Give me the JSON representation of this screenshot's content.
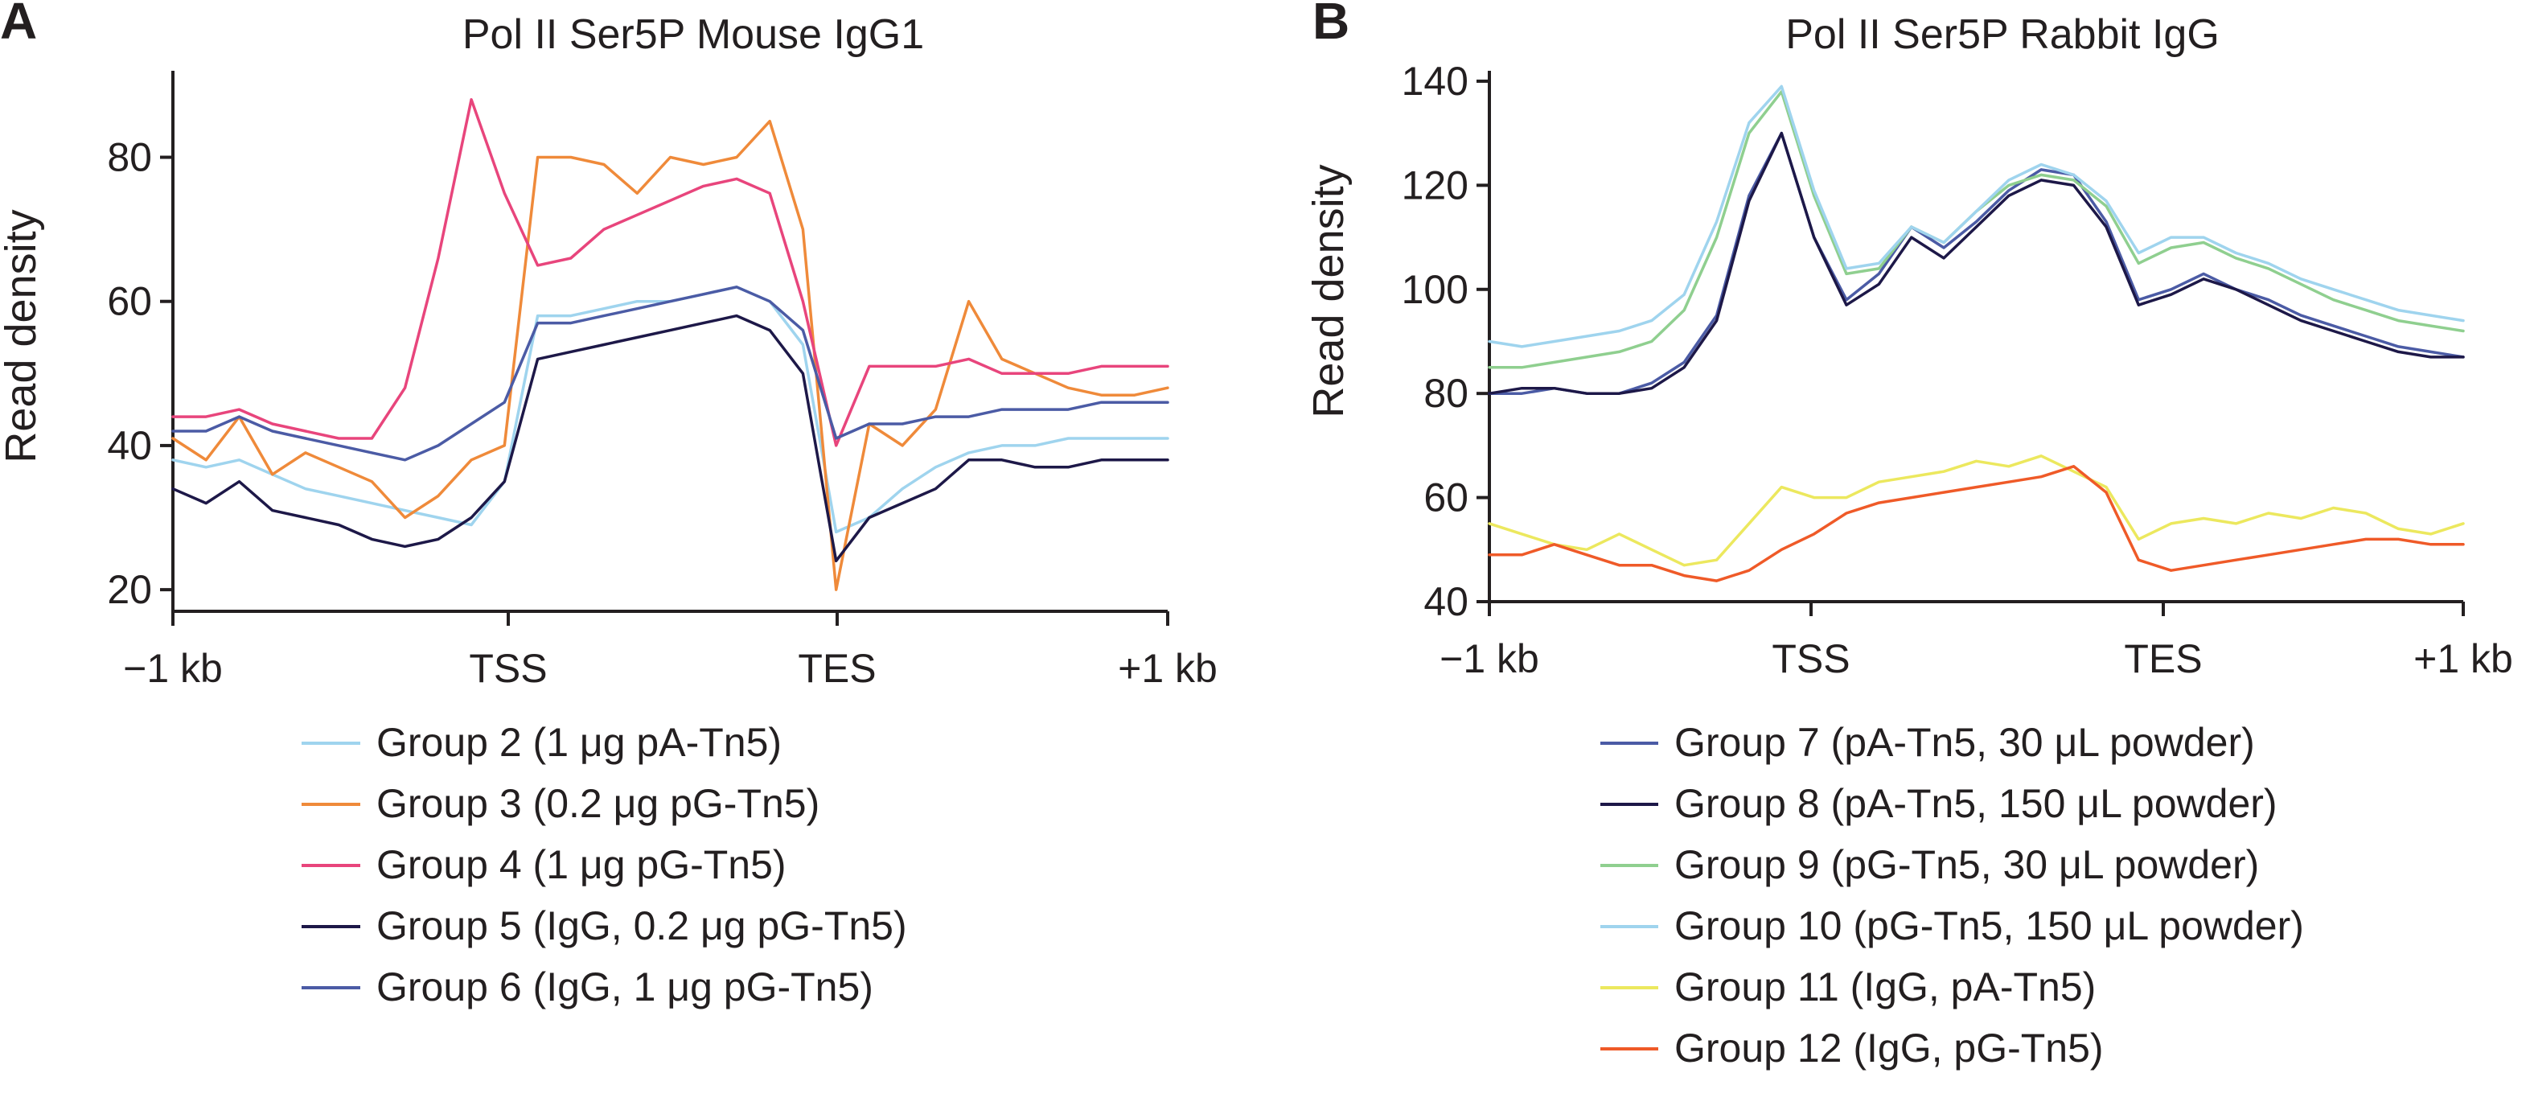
{
  "chart_data": [
    {
      "panel": "A",
      "type": "line",
      "title": "Pol II Ser5P Mouse IgG1",
      "xlabel": "",
      "ylabel": "Read density",
      "x_tick_labels": [
        "−1 kb",
        "TSS",
        "TES",
        "+1 kb"
      ],
      "x": [
        0,
        0.1,
        0.2,
        0.3,
        0.4,
        0.5,
        0.6,
        0.7,
        0.8,
        0.9,
        1.0,
        1.1,
        1.2,
        1.3,
        1.4,
        1.5,
        1.6,
        1.7,
        1.8,
        1.9,
        2.0,
        2.1,
        2.2,
        2.3,
        2.4,
        2.5,
        2.6,
        2.7,
        2.8,
        2.9,
        3.0
      ],
      "xlim": [
        0,
        3
      ],
      "ylim": [
        17,
        92
      ],
      "y_ticks": [
        20,
        40,
        60,
        80
      ],
      "series": [
        {
          "name": "Group 2 (1 μg pA-Tn5)",
          "color": "#9fd4ee",
          "values": [
            38,
            37,
            38,
            36,
            34,
            33,
            32,
            31,
            30,
            29,
            35,
            58,
            58,
            59,
            60,
            60,
            61,
            62,
            60,
            54,
            28,
            30,
            34,
            37,
            39,
            40,
            40,
            41,
            41,
            41,
            41
          ]
        },
        {
          "name": "Group 3 (0.2 μg pG-Tn5)",
          "color": "#ef8a3a",
          "values": [
            41,
            38,
            44,
            36,
            39,
            37,
            35,
            30,
            33,
            38,
            40,
            80,
            80,
            79,
            75,
            80,
            79,
            80,
            85,
            70,
            20,
            43,
            40,
            45,
            60,
            52,
            50,
            48,
            47,
            47,
            48
          ]
        },
        {
          "name": "Group 4 (1 μg pG-Tn5)",
          "color": "#e8457c",
          "values": [
            44,
            44,
            45,
            43,
            42,
            41,
            41,
            48,
            66,
            88,
            75,
            65,
            66,
            70,
            72,
            74,
            76,
            77,
            75,
            60,
            40,
            51,
            51,
            51,
            52,
            50,
            50,
            50,
            51,
            51,
            51
          ]
        },
        {
          "name": "Group 5 (IgG, 0.2 μg pG-Tn5)",
          "color": "#1d1848",
          "values": [
            34,
            32,
            35,
            31,
            30,
            29,
            27,
            26,
            27,
            30,
            35,
            52,
            53,
            54,
            55,
            56,
            57,
            58,
            56,
            50,
            24,
            30,
            32,
            34,
            38,
            38,
            37,
            37,
            38,
            38,
            38
          ]
        },
        {
          "name": "Group 6 (IgG, 1 μg pG-Tn5)",
          "color": "#4b5ba5",
          "values": [
            42,
            42,
            44,
            42,
            41,
            40,
            39,
            38,
            40,
            43,
            46,
            57,
            57,
            58,
            59,
            60,
            61,
            62,
            60,
            56,
            41,
            43,
            43,
            44,
            44,
            45,
            45,
            45,
            46,
            46,
            46
          ]
        }
      ],
      "legend": "below"
    },
    {
      "panel": "B",
      "type": "line",
      "title": "Pol II Ser5P Rabbit IgG",
      "xlabel": "",
      "ylabel": "Read density",
      "x_tick_labels": [
        "−1 kb",
        "TSS",
        "TES",
        "+1 kb"
      ],
      "x": [
        0,
        0.1,
        0.2,
        0.3,
        0.4,
        0.5,
        0.6,
        0.7,
        0.8,
        0.9,
        1.0,
        1.1,
        1.2,
        1.3,
        1.4,
        1.5,
        1.6,
        1.7,
        1.8,
        1.9,
        2.0,
        2.1,
        2.2,
        2.3,
        2.4,
        2.5,
        2.6,
        2.7,
        2.8,
        2.9,
        3.0
      ],
      "xlim": [
        0,
        3
      ],
      "ylim": [
        40,
        142
      ],
      "y_ticks": [
        40,
        60,
        80,
        100,
        120,
        140
      ],
      "series": [
        {
          "name": "Group 7 (pA-Tn5, 30 μL powder)",
          "color": "#4b5ba5",
          "values": [
            80,
            80,
            81,
            80,
            80,
            82,
            86,
            95,
            118,
            130,
            110,
            98,
            103,
            112,
            108,
            113,
            119,
            123,
            122,
            113,
            98,
            100,
            103,
            100,
            98,
            95,
            93,
            91,
            89,
            88,
            87
          ]
        },
        {
          "name": "Group 8 (pA-Tn5, 150 μL powder)",
          "color": "#1d1848",
          "values": [
            80,
            81,
            81,
            80,
            80,
            81,
            85,
            94,
            117,
            130,
            110,
            97,
            101,
            110,
            106,
            112,
            118,
            121,
            120,
            112,
            97,
            99,
            102,
            100,
            97,
            94,
            92,
            90,
            88,
            87,
            87
          ]
        },
        {
          "name": "Group 9 (pG-Tn5, 30 μL powder)",
          "color": "#8fcf8f",
          "values": [
            85,
            85,
            86,
            87,
            88,
            90,
            96,
            110,
            130,
            138,
            118,
            103,
            104,
            112,
            109,
            115,
            120,
            122,
            121,
            116,
            105,
            108,
            109,
            106,
            104,
            101,
            98,
            96,
            94,
            93,
            92
          ]
        },
        {
          "name": "Group 10 (pG-Tn5, 150 μL powder)",
          "color": "#9fd4ee",
          "values": [
            90,
            89,
            90,
            91,
            92,
            94,
            99,
            113,
            132,
            139,
            119,
            104,
            105,
            112,
            109,
            115,
            121,
            124,
            122,
            117,
            107,
            110,
            110,
            107,
            105,
            102,
            100,
            98,
            96,
            95,
            94
          ]
        },
        {
          "name": "Group 11 (IgG, pA-Tn5)",
          "color": "#ece85e",
          "values": [
            55,
            53,
            51,
            50,
            53,
            50,
            47,
            48,
            55,
            62,
            60,
            60,
            63,
            64,
            65,
            67,
            66,
            68,
            65,
            62,
            52,
            55,
            56,
            55,
            57,
            56,
            58,
            57,
            54,
            53,
            55
          ]
        },
        {
          "name": "Group 12 (IgG, pG-Tn5)",
          "color": "#ef5a28",
          "values": [
            49,
            49,
            51,
            49,
            47,
            47,
            45,
            44,
            46,
            50,
            53,
            57,
            59,
            60,
            61,
            62,
            63,
            64,
            66,
            61,
            48,
            46,
            47,
            48,
            49,
            50,
            51,
            52,
            52,
            51,
            51
          ]
        }
      ],
      "legend": "below"
    }
  ]
}
